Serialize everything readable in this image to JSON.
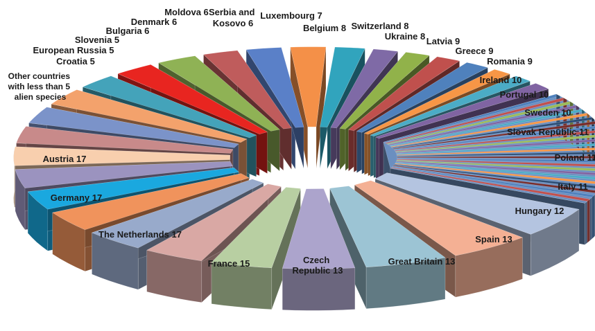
{
  "chart_data": {
    "type": "pie",
    "title": "",
    "slices": [
      {
        "label": "Czech Republic 13",
        "name": "Czech Republic",
        "value": 13,
        "color": "#b8cfa2"
      },
      {
        "label": "Great Britain 13",
        "name": "Great Britain",
        "value": 13,
        "color": "#d9a8a4"
      },
      {
        "label": "Spain 13",
        "name": "Spain",
        "value": 13,
        "color": "#98aacb"
      },
      {
        "label": "Hungary 12",
        "name": "Hungary",
        "value": 12,
        "color": "#f0935c"
      },
      {
        "label": "Italy 11",
        "name": "Italy",
        "value": 11,
        "color": "#1aa8df"
      },
      {
        "label": "Poland 11",
        "name": "Poland",
        "value": 11,
        "color": "#9b93bf"
      },
      {
        "label": "Slovak Republic 11",
        "name": "Slovak Republic",
        "value": 11,
        "color": "#f8cfae"
      },
      {
        "label": "Sweden 10",
        "name": "Sweden",
        "value": 10,
        "color": "#c88a8a"
      },
      {
        "label": "Portugal 10",
        "name": "Portugal",
        "value": 10,
        "color": "#7b93c9"
      },
      {
        "label": "Ireland 10",
        "name": "Ireland",
        "value": 10,
        "color": "#f3a26c"
      },
      {
        "label": "Romania 9",
        "name": "Romania",
        "value": 9,
        "color": "#44a3ba"
      },
      {
        "label": "Greece 9",
        "name": "Greece",
        "value": 9,
        "color": "#e82520"
      },
      {
        "label": "Latvia 9",
        "name": "Latvia",
        "value": 9,
        "color": "#8fb255"
      },
      {
        "label": "Ukraine 8",
        "name": "Ukraine",
        "value": 8,
        "color": "#bf5c5c"
      },
      {
        "label": "Switzerland 8",
        "name": "Switzerland",
        "value": 8,
        "color": "#5a80c8"
      },
      {
        "label": "Belgium 8",
        "name": "Belgium",
        "value": 8,
        "color": "#f49048"
      },
      {
        "label": "Luxembourg 7",
        "name": "Luxembourg",
        "value": 7,
        "color": "#31a4bd"
      },
      {
        "label": "Serbia and Kosovo 6",
        "name": "Serbia and Kosovo",
        "value": 6,
        "color": "#7f6aa6"
      },
      {
        "label": "Moldova 6",
        "name": "Moldova",
        "value": 6,
        "color": "#91b24a"
      },
      {
        "label": "Denmark 6",
        "name": "Denmark",
        "value": 6,
        "color": "#c0504d"
      },
      {
        "label": "Bulgaria 6",
        "name": "Bulgaria",
        "value": 6,
        "color": "#4f81bd"
      },
      {
        "label": "Slovenia 5",
        "name": "Slovenia",
        "value": 5,
        "color": "#f79646"
      },
      {
        "label": "European Russia 5",
        "name": "European Russia",
        "value": 5,
        "color": "#4bacc6"
      },
      {
        "label": "Croatia 5",
        "name": "Croatia",
        "value": 5,
        "color": "#8064a2"
      },
      {
        "label": "Other countries with less than 5 alien species",
        "name": "Other countries with less than 5 alien species",
        "value": 60,
        "color": "#6b8fc0"
      },
      {
        "label": "Austria 17",
        "name": "Austria",
        "value": 17,
        "color": "#b4c4e0"
      },
      {
        "label": "Germany 17",
        "name": "Germany",
        "value": 17,
        "color": "#f4b094"
      },
      {
        "label": "The Netherlands 17",
        "name": "The Netherlands",
        "value": 17,
        "color": "#9cc4d4"
      },
      {
        "label": "France 15",
        "name": "France",
        "value": 15,
        "color": "#aca4cc"
      }
    ],
    "others_stripe_colors": [
      "#4f81bd",
      "#c0504d",
      "#9bbb59",
      "#8064a2",
      "#4bacc6",
      "#f79646",
      "#2c4d75",
      "#772c2a"
    ],
    "labels": {
      "czech": [
        "Czech",
        "Republic 13"
      ],
      "great_britain": "Great Britain 13",
      "spain": "Spain 13",
      "hungary": "Hungary 12",
      "italy": "Italy 11",
      "poland": "Poland 11",
      "slovak": "Slovak Republic 11",
      "sweden": "Sweden 10",
      "portugal": "Portugal 10",
      "ireland": "Ireland 10",
      "romania": "Romania 9",
      "greece": "Greece 9",
      "latvia": "Latvia 9",
      "ukraine": "Ukraine 8",
      "switzerland": "Switzerland 8",
      "belgium": "Belgium 8",
      "luxembourg": "Luxembourg 7",
      "serbia": [
        "Serbia and",
        "Kosovo 6"
      ],
      "moldova": "Moldova 6",
      "denmark": "Denmark 6",
      "bulgaria": "Bulgaria 6",
      "slovenia": "Slovenia 5",
      "eu_russia": "European Russia 5",
      "croatia": "Croatia 5",
      "others": [
        "Other countries",
        "with less than 5",
        "alien species"
      ],
      "austria": "Austria 17",
      "germany": "Germany 17",
      "netherlands": "The Netherlands 17",
      "france": "France 15"
    }
  }
}
